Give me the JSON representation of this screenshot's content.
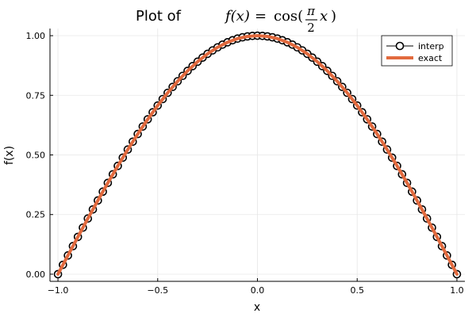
{
  "chart_data": {
    "type": "line",
    "title": {
      "prefix": "Plot of ",
      "f_of_x": "f(x)",
      "equals": " = ",
      "func": "cos(",
      "numerator": "π",
      "denominator": "2",
      "var": "x",
      "close": ")"
    },
    "xlabel": "x",
    "ylabel": "f(x)",
    "xlim": [
      -1.04,
      1.04
    ],
    "ylim": [
      -0.03,
      1.03
    ],
    "xticks": [
      -1.0,
      -0.5,
      0.0,
      0.5,
      1.0
    ],
    "xtick_labels": [
      "−1.0",
      "−0.5",
      "0.0",
      "0.5",
      "1.0"
    ],
    "yticks": [
      0.0,
      0.25,
      0.5,
      0.75,
      1.0
    ],
    "ytick_labels": [
      "0.00",
      "0.25",
      "0.50",
      "0.75",
      "1.00"
    ],
    "grid": true,
    "legend_position": "top-right",
    "series": [
      {
        "name": "interp",
        "style": "line-with-circle-markers",
        "color": "#000000",
        "marker_fill": "#ffffff",
        "x": [
          -1.0,
          -0.975,
          -0.95,
          -0.925,
          -0.9,
          -0.875,
          -0.85,
          -0.825,
          -0.8,
          -0.775,
          -0.75,
          -0.725,
          -0.7,
          -0.675,
          -0.65,
          -0.625,
          -0.6,
          -0.575,
          -0.55,
          -0.525,
          -0.5,
          -0.475,
          -0.45,
          -0.425,
          -0.4,
          -0.375,
          -0.35,
          -0.325,
          -0.3,
          -0.275,
          -0.25,
          -0.225,
          -0.2,
          -0.175,
          -0.15,
          -0.125,
          -0.1,
          -0.075,
          -0.05,
          -0.025,
          0.0,
          0.025,
          0.05,
          0.075,
          0.1,
          0.125,
          0.15,
          0.175,
          0.2,
          0.225,
          0.25,
          0.275,
          0.3,
          0.325,
          0.35,
          0.375,
          0.4,
          0.425,
          0.45,
          0.475,
          0.5,
          0.525,
          0.55,
          0.575,
          0.6,
          0.625,
          0.65,
          0.675,
          0.7,
          0.725,
          0.75,
          0.775,
          0.8,
          0.825,
          0.85,
          0.875,
          0.9,
          0.925,
          0.95,
          0.975,
          1.0
        ],
        "y": [
          0.0,
          0.0393,
          0.0785,
          0.1175,
          0.1564,
          0.1951,
          0.2334,
          0.2714,
          0.309,
          0.3461,
          0.3827,
          0.4187,
          0.454,
          0.4886,
          0.5225,
          0.5556,
          0.5878,
          0.6191,
          0.6494,
          0.6788,
          0.7071,
          0.7343,
          0.7604,
          0.7853,
          0.809,
          0.8315,
          0.8526,
          0.8725,
          0.891,
          0.9081,
          0.9239,
          0.9382,
          0.9511,
          0.9625,
          0.9724,
          0.9808,
          0.9877,
          0.9931,
          0.9969,
          0.9992,
          1.0,
          0.9992,
          0.9969,
          0.9931,
          0.9877,
          0.9808,
          0.9724,
          0.9625,
          0.9511,
          0.9382,
          0.9239,
          0.9081,
          0.891,
          0.8725,
          0.8526,
          0.8315,
          0.809,
          0.7853,
          0.7604,
          0.7343,
          0.7071,
          0.6788,
          0.6494,
          0.6191,
          0.5878,
          0.5556,
          0.5225,
          0.4886,
          0.454,
          0.4187,
          0.3827,
          0.3461,
          0.309,
          0.2714,
          0.2334,
          0.1951,
          0.1564,
          0.1175,
          0.0785,
          0.0393,
          0.0
        ]
      },
      {
        "name": "exact",
        "style": "thick-line",
        "color": "#e26a3e",
        "x": [
          -1.0,
          -0.95,
          -0.9,
          -0.85,
          -0.8,
          -0.75,
          -0.7,
          -0.65,
          -0.6,
          -0.55,
          -0.5,
          -0.45,
          -0.4,
          -0.35,
          -0.3,
          -0.25,
          -0.2,
          -0.15,
          -0.1,
          -0.05,
          0.0,
          0.05,
          0.1,
          0.15,
          0.2,
          0.25,
          0.3,
          0.35,
          0.4,
          0.45,
          0.5,
          0.55,
          0.6,
          0.65,
          0.7,
          0.75,
          0.8,
          0.85,
          0.9,
          0.95,
          1.0
        ],
        "y": [
          0.0,
          0.0785,
          0.1564,
          0.2334,
          0.309,
          0.3827,
          0.454,
          0.5225,
          0.5878,
          0.6494,
          0.7071,
          0.7604,
          0.809,
          0.8526,
          0.891,
          0.9239,
          0.9511,
          0.9724,
          0.9877,
          0.9969,
          1.0,
          0.9969,
          0.9877,
          0.9724,
          0.9511,
          0.9239,
          0.891,
          0.8526,
          0.809,
          0.7604,
          0.7071,
          0.6494,
          0.5878,
          0.5225,
          0.454,
          0.3827,
          0.309,
          0.2334,
          0.1564,
          0.0785,
          0.0
        ]
      }
    ]
  }
}
